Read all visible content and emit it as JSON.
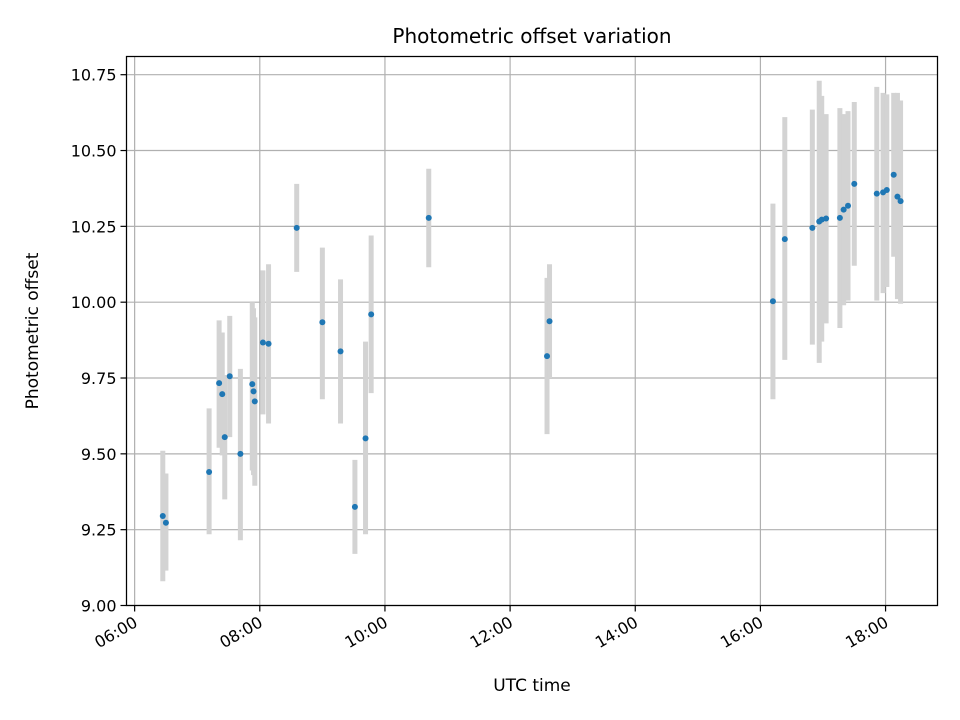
{
  "chart_data": {
    "type": "scatter",
    "title": "Photometric offset variation",
    "xlabel": "UTC time",
    "ylabel": "Photometric offset",
    "x_unit": "hours (UTC)",
    "xlim": [
      5.87,
      18.83
    ],
    "ylim": [
      9.0,
      10.81
    ],
    "xticks": [
      6,
      8,
      10,
      12,
      14,
      16,
      18
    ],
    "xtick_labels": [
      "06:00",
      "08:00",
      "10:00",
      "12:00",
      "14:00",
      "16:00",
      "18:00"
    ],
    "yticks": [
      9.0,
      9.25,
      9.5,
      9.75,
      10.0,
      10.25,
      10.5,
      10.75
    ],
    "ytick_labels": [
      "9.00",
      "9.25",
      "9.50",
      "9.75",
      "10.00",
      "10.25",
      "10.50",
      "10.75"
    ],
    "grid": true,
    "point_color": "#1f77b4",
    "errorbar_color": "#d3d3d3",
    "points": [
      {
        "x": 6.45,
        "y": 9.295,
        "err_low": 9.08,
        "err_high": 9.51
      },
      {
        "x": 6.5,
        "y": 9.273,
        "err_low": 9.115,
        "err_high": 9.435
      },
      {
        "x": 7.19,
        "y": 9.44,
        "err_low": 9.235,
        "err_high": 9.65
      },
      {
        "x": 7.35,
        "y": 9.733,
        "err_low": 9.52,
        "err_high": 9.94
      },
      {
        "x": 7.4,
        "y": 9.697,
        "err_low": 9.495,
        "err_high": 9.9
      },
      {
        "x": 7.44,
        "y": 9.555,
        "err_low": 9.35,
        "err_high": 9.76
      },
      {
        "x": 7.52,
        "y": 9.756,
        "err_low": 9.555,
        "err_high": 9.955
      },
      {
        "x": 7.69,
        "y": 9.5,
        "err_low": 9.215,
        "err_high": 9.78
      },
      {
        "x": 7.88,
        "y": 9.73,
        "err_low": 9.445,
        "err_high": 10.0
      },
      {
        "x": 7.9,
        "y": 9.706,
        "err_low": 9.43,
        "err_high": 9.98
      },
      {
        "x": 7.92,
        "y": 9.673,
        "err_low": 9.395,
        "err_high": 9.95
      },
      {
        "x": 8.05,
        "y": 9.867,
        "err_low": 9.63,
        "err_high": 10.105
      },
      {
        "x": 8.14,
        "y": 9.863,
        "err_low": 9.6,
        "err_high": 10.125
      },
      {
        "x": 8.59,
        "y": 10.245,
        "err_low": 10.1,
        "err_high": 10.39
      },
      {
        "x": 9.0,
        "y": 9.934,
        "err_low": 9.68,
        "err_high": 10.18
      },
      {
        "x": 9.29,
        "y": 9.838,
        "err_low": 9.6,
        "err_high": 10.075
      },
      {
        "x": 9.52,
        "y": 9.325,
        "err_low": 9.17,
        "err_high": 9.48
      },
      {
        "x": 9.69,
        "y": 9.551,
        "err_low": 9.235,
        "err_high": 9.87
      },
      {
        "x": 9.78,
        "y": 9.96,
        "err_low": 9.7,
        "err_high": 10.22
      },
      {
        "x": 10.7,
        "y": 10.278,
        "err_low": 10.115,
        "err_high": 10.44
      },
      {
        "x": 12.59,
        "y": 9.822,
        "err_low": 9.565,
        "err_high": 10.08
      },
      {
        "x": 12.63,
        "y": 9.937,
        "err_low": 9.75,
        "err_high": 10.125
      },
      {
        "x": 16.2,
        "y": 10.003,
        "err_low": 9.68,
        "err_high": 10.325
      },
      {
        "x": 16.39,
        "y": 10.208,
        "err_low": 9.81,
        "err_high": 10.61
      },
      {
        "x": 16.83,
        "y": 10.245,
        "err_low": 9.86,
        "err_high": 10.635
      },
      {
        "x": 16.94,
        "y": 10.266,
        "err_low": 9.8,
        "err_high": 10.73
      },
      {
        "x": 16.98,
        "y": 10.272,
        "err_low": 9.87,
        "err_high": 10.68
      },
      {
        "x": 17.05,
        "y": 10.276,
        "err_low": 9.93,
        "err_high": 10.62
      },
      {
        "x": 17.27,
        "y": 10.278,
        "err_low": 9.915,
        "err_high": 10.64
      },
      {
        "x": 17.33,
        "y": 10.305,
        "err_low": 9.99,
        "err_high": 10.62
      },
      {
        "x": 17.4,
        "y": 10.318,
        "err_low": 10.005,
        "err_high": 10.63
      },
      {
        "x": 17.5,
        "y": 10.39,
        "err_low": 10.12,
        "err_high": 10.66
      },
      {
        "x": 17.86,
        "y": 10.358,
        "err_low": 10.005,
        "err_high": 10.71
      },
      {
        "x": 17.96,
        "y": 10.362,
        "err_low": 10.03,
        "err_high": 10.69
      },
      {
        "x": 18.02,
        "y": 10.37,
        "err_low": 10.05,
        "err_high": 10.685
      },
      {
        "x": 18.13,
        "y": 10.42,
        "err_low": 10.15,
        "err_high": 10.69
      },
      {
        "x": 18.19,
        "y": 10.348,
        "err_low": 10.01,
        "err_high": 10.69
      },
      {
        "x": 18.24,
        "y": 10.333,
        "err_low": 9.995,
        "err_high": 10.665
      }
    ]
  }
}
